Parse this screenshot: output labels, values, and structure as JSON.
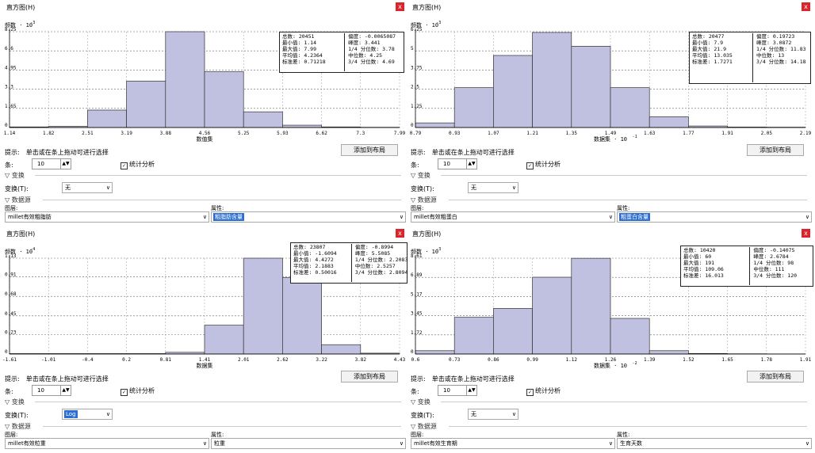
{
  "panels": [
    {
      "title": "直方图(H)",
      "close": "x",
      "ylabel": "频数 · 10",
      "ylabel_exp": "-3",
      "xlabel": "数值集",
      "xlabel_exp": "",
      "stats": {
        "count_label": "总数",
        "count": ": 20451",
        "min_label": "最小值",
        "min": ": 1.14",
        "max_label": "最大值",
        "max": ": 7.99",
        "mean_label": "平均值",
        "mean": ": 4.2364",
        "std_label": "标准差",
        "std": ": 0.71218",
        "skew_label": "偏度",
        "skew": ": -0.0065087",
        "kurt_label": "峰度",
        "kurt": ": 3.441",
        "q1_label": "1/4 分位数",
        "q1": ": 3.78",
        "median_label": "中位数",
        "median": ": 4.25",
        "q3_label": "3/4 分位数",
        "q3": ": 4.69"
      },
      "hint": "提示:　单击或在条上拖动可进行选择",
      "add_button": "添加到布局",
      "bins_label": "条:",
      "bins_value": "10",
      "stats_check": "统计分析",
      "transform_section": "变换",
      "transform_label": "变换(T):",
      "transform_value": "无",
      "datasource_section": "数据源",
      "layer_label": "图层:",
      "layer_value": "millet有效粗脂肪",
      "attr_label": "属性:",
      "attr_value": "粗脂肪含量",
      "attr_selected": true
    },
    {
      "title": "直方图(H)",
      "close": "x",
      "ylabel": "频数 · 10",
      "ylabel_exp": "-3",
      "xlabel": "数据集 · 10",
      "xlabel_exp": "-1",
      "stats": {
        "count_label": "总数",
        "count": ": 20477",
        "min_label": "最小值",
        "min": ": 7.9",
        "max_label": "最大值",
        "max": ": 21.9",
        "mean_label": "平均值",
        "mean": ": 13.035",
        "std_label": "标准差",
        "std": ": 1.7271",
        "skew_label": "偏度",
        "skew": ": 0.19723",
        "kurt_label": "峰度",
        "kurt": ": 3.0872",
        "q1_label": "1/4 分位数",
        "q1": ": 11.83",
        "median_label": "中位数",
        "median": ": 13",
        "q3_label": "3/4 分位数",
        "q3": ": 14.18"
      },
      "hint": "提示:　单击或在条上拖动可进行选择",
      "add_button": "添加到布局",
      "bins_label": "条:",
      "bins_value": "10",
      "stats_check": "统计分析",
      "transform_section": "变换",
      "transform_label": "变换(T):",
      "transform_value": "无",
      "datasource_section": "数据源",
      "layer_label": "图层:",
      "layer_value": "millet有效粗蛋白",
      "attr_label": "属性:",
      "attr_value": "粗蛋白含量",
      "attr_selected": true
    },
    {
      "title": "直方图(H)",
      "close": "x",
      "ylabel": "频数 · 10",
      "ylabel_exp": "-4",
      "xlabel": "数据集",
      "xlabel_exp": "",
      "stats": {
        "count_label": "总数",
        "count": ": 23807",
        "min_label": "最小值",
        "min": ": -1.6094",
        "max_label": "最大值",
        "max": ": 4.4272",
        "mean_label": "平均值",
        "mean": ": 2.1883",
        "std_label": "标准差",
        "std": ": 0.50016",
        "skew_label": "偏度",
        "skew": ": -0.8994",
        "kurt_label": "峰度",
        "kurt": ": 5.5085",
        "q1_label": "1/4 分位数",
        "q1": ": 2.2083",
        "median_label": "中位数",
        "median": ": 2.5257",
        "q3_label": "3/4 分位数",
        "q3": ": 2.8094"
      },
      "hint": "提示:　单击或在条上拖动可进行选择",
      "add_button": "添加到布局",
      "bins_label": "条:",
      "bins_value": "10",
      "stats_check": "统计分析",
      "transform_section": "变换",
      "transform_label": "变换(T):",
      "transform_value": "Log",
      "transform_selected": true,
      "datasource_section": "数据源",
      "layer_label": "图层:",
      "layer_value": "millet有效粒重",
      "attr_label": "属性:",
      "attr_value": "粒重",
      "attr_selected": false
    },
    {
      "title": "直方图(H)",
      "close": "x",
      "ylabel": "频数 · 10",
      "ylabel_exp": "-3",
      "xlabel": "数据集 · 10",
      "xlabel_exp": "-2",
      "stats": {
        "count_label": "总数",
        "count": ": 10420",
        "min_label": "最小值",
        "min": ": 60",
        "max_label": "最大值",
        "max": ": 191",
        "mean_label": "平均值",
        "mean": ": 109.06",
        "std_label": "标准差",
        "std": ": 16.013",
        "skew_label": "偏度",
        "skew": ": -0.14075",
        "kurt_label": "峰度",
        "kurt": ": 2.6784",
        "q1_label": "1/4 分位数",
        "q1": ": 98",
        "median_label": "中位数",
        "median": ": 111",
        "q3_label": "3/4 分位数",
        "q3": ": 120"
      },
      "hint": "提示:　单击或在条上拖动可进行选择",
      "add_button": "添加到布局",
      "bins_label": "条:",
      "bins_value": "10",
      "stats_check": "统计分析",
      "transform_section": "变换",
      "transform_label": "变换(T):",
      "transform_value": "无",
      "datasource_section": "数据源",
      "layer_label": "图层:",
      "layer_value": "millet有效生育期",
      "attr_label": "属性:",
      "attr_value": "生育天数",
      "attr_selected": false
    }
  ],
  "chart_data": [
    {
      "type": "bar",
      "x_ticks": [
        "1.14",
        "1.82",
        "2.51",
        "3.19",
        "3.88",
        "4.56",
        "5.25",
        "5.93",
        "6.62",
        "7.3",
        "7.99"
      ],
      "y_ticks": [
        "0",
        "1.65",
        "3.3",
        "4.95",
        "6.6",
        "8.25"
      ],
      "ylim": [
        0,
        8.25
      ],
      "values": [
        0.05,
        0.1,
        1.5,
        4.0,
        8.25,
        4.8,
        1.35,
        0.2,
        0.05,
        0.02
      ],
      "bar_color": "#c0c0e0"
    },
    {
      "type": "bar",
      "x_ticks": [
        "0.79",
        "0.93",
        "1.07",
        "1.21",
        "1.35",
        "1.49",
        "1.63",
        "1.77",
        "1.91",
        "2.05",
        "2.19"
      ],
      "y_ticks": [
        "0",
        "1.25",
        "2.5",
        "3.75",
        "5",
        "6.25"
      ],
      "ylim": [
        0,
        6.25
      ],
      "values": [
        0.3,
        2.6,
        4.7,
        6.2,
        5.3,
        2.6,
        0.7,
        0.1,
        0.03,
        0.02
      ],
      "bar_color": "#c0c0e0"
    },
    {
      "type": "bar",
      "x_ticks": [
        "-1.61",
        "-1.01",
        "-0.4",
        "0.2",
        "0.81",
        "1.41",
        "2.01",
        "2.62",
        "3.22",
        "3.82",
        "4.43"
      ],
      "y_ticks": [
        "0",
        "0.23",
        "0.45",
        "0.68",
        "0.91",
        "1.13"
      ],
      "ylim": [
        0,
        1.13
      ],
      "values": [
        0.005,
        0.005,
        0.005,
        0.005,
        0.02,
        0.34,
        1.13,
        0.9,
        0.11,
        0.01
      ],
      "bar_color": "#c0c0e0"
    },
    {
      "type": "bar",
      "x_ticks": [
        "0.6",
        "0.73",
        "0.86",
        "0.99",
        "1.12",
        "1.26",
        "1.39",
        "1.52",
        "1.65",
        "1.78",
        "1.91"
      ],
      "y_ticks": [
        "0",
        "1.72",
        "3.45",
        "5.17",
        "6.89",
        "8.61"
      ],
      "ylim": [
        0,
        8.61
      ],
      "values": [
        0.3,
        3.3,
        4.1,
        6.9,
        8.6,
        3.2,
        0.3,
        0.05,
        0.02,
        0.01
      ],
      "bar_color": "#c0c0e0"
    }
  ]
}
